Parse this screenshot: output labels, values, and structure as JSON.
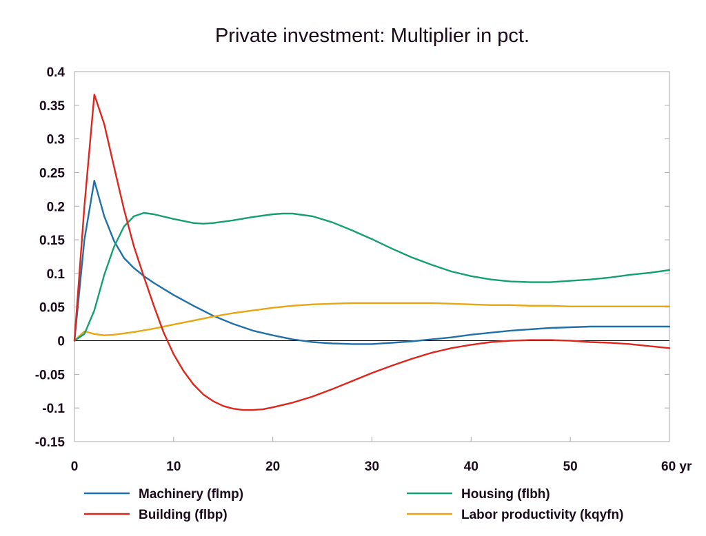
{
  "chart_data": {
    "type": "line",
    "title": "Private investment: Multiplier in pct.",
    "xlabel": "",
    "ylabel": "",
    "x_unit": "yr",
    "xlim": [
      0,
      60
    ],
    "ylim": [
      -0.15,
      0.4
    ],
    "xticks": [
      0,
      10,
      20,
      30,
      40,
      50,
      60
    ],
    "xtick_labels": [
      "0",
      "10",
      "20",
      "30",
      "40",
      "50",
      "60 yr"
    ],
    "yticks": [
      0.4,
      0.35,
      0.3,
      0.25,
      0.2,
      0.15,
      0.1,
      0.05,
      0,
      -0.05,
      -0.1,
      -0.15
    ],
    "ytick_labels": [
      "0.4",
      "0.35",
      "0.3",
      "0.25",
      "0.2",
      "0.15",
      "0.1",
      "0.05",
      "0",
      "-0.05",
      "-0.1",
      "-0.15"
    ],
    "grid": false,
    "zero_line": true,
    "legend_position": "bottom",
    "series": [
      {
        "name": "Machinery (flmp)",
        "color": "#1f6fa8",
        "points": [
          [
            0,
            0
          ],
          [
            1,
            0.15
          ],
          [
            2,
            0.238
          ],
          [
            3,
            0.185
          ],
          [
            4,
            0.148
          ],
          [
            5,
            0.123
          ],
          [
            6,
            0.108
          ],
          [
            7,
            0.096
          ],
          [
            8,
            0.086
          ],
          [
            10,
            0.068
          ],
          [
            12,
            0.052
          ],
          [
            14,
            0.037
          ],
          [
            16,
            0.025
          ],
          [
            18,
            0.015
          ],
          [
            20,
            0.008
          ],
          [
            22,
            0.002
          ],
          [
            24,
            -0.002
          ],
          [
            26,
            -0.004
          ],
          [
            28,
            -0.005
          ],
          [
            30,
            -0.005
          ],
          [
            32,
            -0.003
          ],
          [
            34,
            -0.001
          ],
          [
            36,
            0.002
          ],
          [
            38,
            0.005
          ],
          [
            40,
            0.009
          ],
          [
            42,
            0.012
          ],
          [
            44,
            0.015
          ],
          [
            46,
            0.017
          ],
          [
            48,
            0.019
          ],
          [
            50,
            0.02
          ],
          [
            52,
            0.021
          ],
          [
            54,
            0.021
          ],
          [
            56,
            0.021
          ],
          [
            58,
            0.021
          ],
          [
            60,
            0.021
          ]
        ]
      },
      {
        "name": "Building (flbp)",
        "color": "#e0251b",
        "points": [
          [
            0,
            0
          ],
          [
            1,
            0.2
          ],
          [
            2,
            0.366
          ],
          [
            3,
            0.322
          ],
          [
            4,
            0.258
          ],
          [
            5,
            0.195
          ],
          [
            6,
            0.14
          ],
          [
            7,
            0.095
          ],
          [
            8,
            0.052
          ],
          [
            9,
            0.012
          ],
          [
            10,
            -0.02
          ],
          [
            11,
            -0.045
          ],
          [
            12,
            -0.065
          ],
          [
            13,
            -0.08
          ],
          [
            14,
            -0.09
          ],
          [
            15,
            -0.097
          ],
          [
            16,
            -0.101
          ],
          [
            17,
            -0.103
          ],
          [
            18,
            -0.103
          ],
          [
            19,
            -0.102
          ],
          [
            20,
            -0.099
          ],
          [
            22,
            -0.092
          ],
          [
            24,
            -0.083
          ],
          [
            26,
            -0.072
          ],
          [
            28,
            -0.06
          ],
          [
            30,
            -0.048
          ],
          [
            32,
            -0.037
          ],
          [
            34,
            -0.027
          ],
          [
            36,
            -0.018
          ],
          [
            38,
            -0.011
          ],
          [
            40,
            -0.006
          ],
          [
            42,
            -0.002
          ],
          [
            44,
            0
          ],
          [
            46,
            0.001
          ],
          [
            48,
            0.001
          ],
          [
            50,
            0
          ],
          [
            52,
            -0.002
          ],
          [
            54,
            -0.003
          ],
          [
            56,
            -0.005
          ],
          [
            58,
            -0.008
          ],
          [
            60,
            -0.011
          ]
        ]
      },
      {
        "name": "Housing (flbh)",
        "color": "#14a06e",
        "points": [
          [
            0,
            0
          ],
          [
            1,
            0.01
          ],
          [
            2,
            0.045
          ],
          [
            3,
            0.098
          ],
          [
            4,
            0.14
          ],
          [
            5,
            0.17
          ],
          [
            6,
            0.185
          ],
          [
            7,
            0.19
          ],
          [
            8,
            0.188
          ],
          [
            10,
            0.181
          ],
          [
            12,
            0.175
          ],
          [
            13,
            0.174
          ],
          [
            14,
            0.175
          ],
          [
            16,
            0.179
          ],
          [
            18,
            0.184
          ],
          [
            20,
            0.188
          ],
          [
            21,
            0.189
          ],
          [
            22,
            0.189
          ],
          [
            24,
            0.185
          ],
          [
            26,
            0.176
          ],
          [
            28,
            0.164
          ],
          [
            30,
            0.151
          ],
          [
            32,
            0.137
          ],
          [
            34,
            0.124
          ],
          [
            36,
            0.113
          ],
          [
            38,
            0.103
          ],
          [
            40,
            0.096
          ],
          [
            42,
            0.091
          ],
          [
            44,
            0.088
          ],
          [
            46,
            0.087
          ],
          [
            48,
            0.087
          ],
          [
            50,
            0.089
          ],
          [
            52,
            0.091
          ],
          [
            54,
            0.094
          ],
          [
            56,
            0.098
          ],
          [
            58,
            0.101
          ],
          [
            60,
            0.105
          ]
        ]
      },
      {
        "name": "Labor productivity (kqyfn)",
        "color": "#e8a510",
        "points": [
          [
            0,
            0
          ],
          [
            1,
            0.014
          ],
          [
            2,
            0.01
          ],
          [
            3,
            0.008
          ],
          [
            4,
            0.009
          ],
          [
            6,
            0.013
          ],
          [
            8,
            0.018
          ],
          [
            10,
            0.024
          ],
          [
            12,
            0.03
          ],
          [
            14,
            0.036
          ],
          [
            16,
            0.041
          ],
          [
            18,
            0.045
          ],
          [
            20,
            0.049
          ],
          [
            22,
            0.052
          ],
          [
            24,
            0.054
          ],
          [
            26,
            0.055
          ],
          [
            28,
            0.056
          ],
          [
            30,
            0.056
          ],
          [
            32,
            0.056
          ],
          [
            34,
            0.056
          ],
          [
            36,
            0.056
          ],
          [
            38,
            0.055
          ],
          [
            40,
            0.054
          ],
          [
            42,
            0.053
          ],
          [
            44,
            0.053
          ],
          [
            46,
            0.052
          ],
          [
            48,
            0.052
          ],
          [
            50,
            0.051
          ],
          [
            52,
            0.051
          ],
          [
            54,
            0.051
          ],
          [
            56,
            0.051
          ],
          [
            58,
            0.051
          ],
          [
            60,
            0.051
          ]
        ]
      }
    ]
  }
}
